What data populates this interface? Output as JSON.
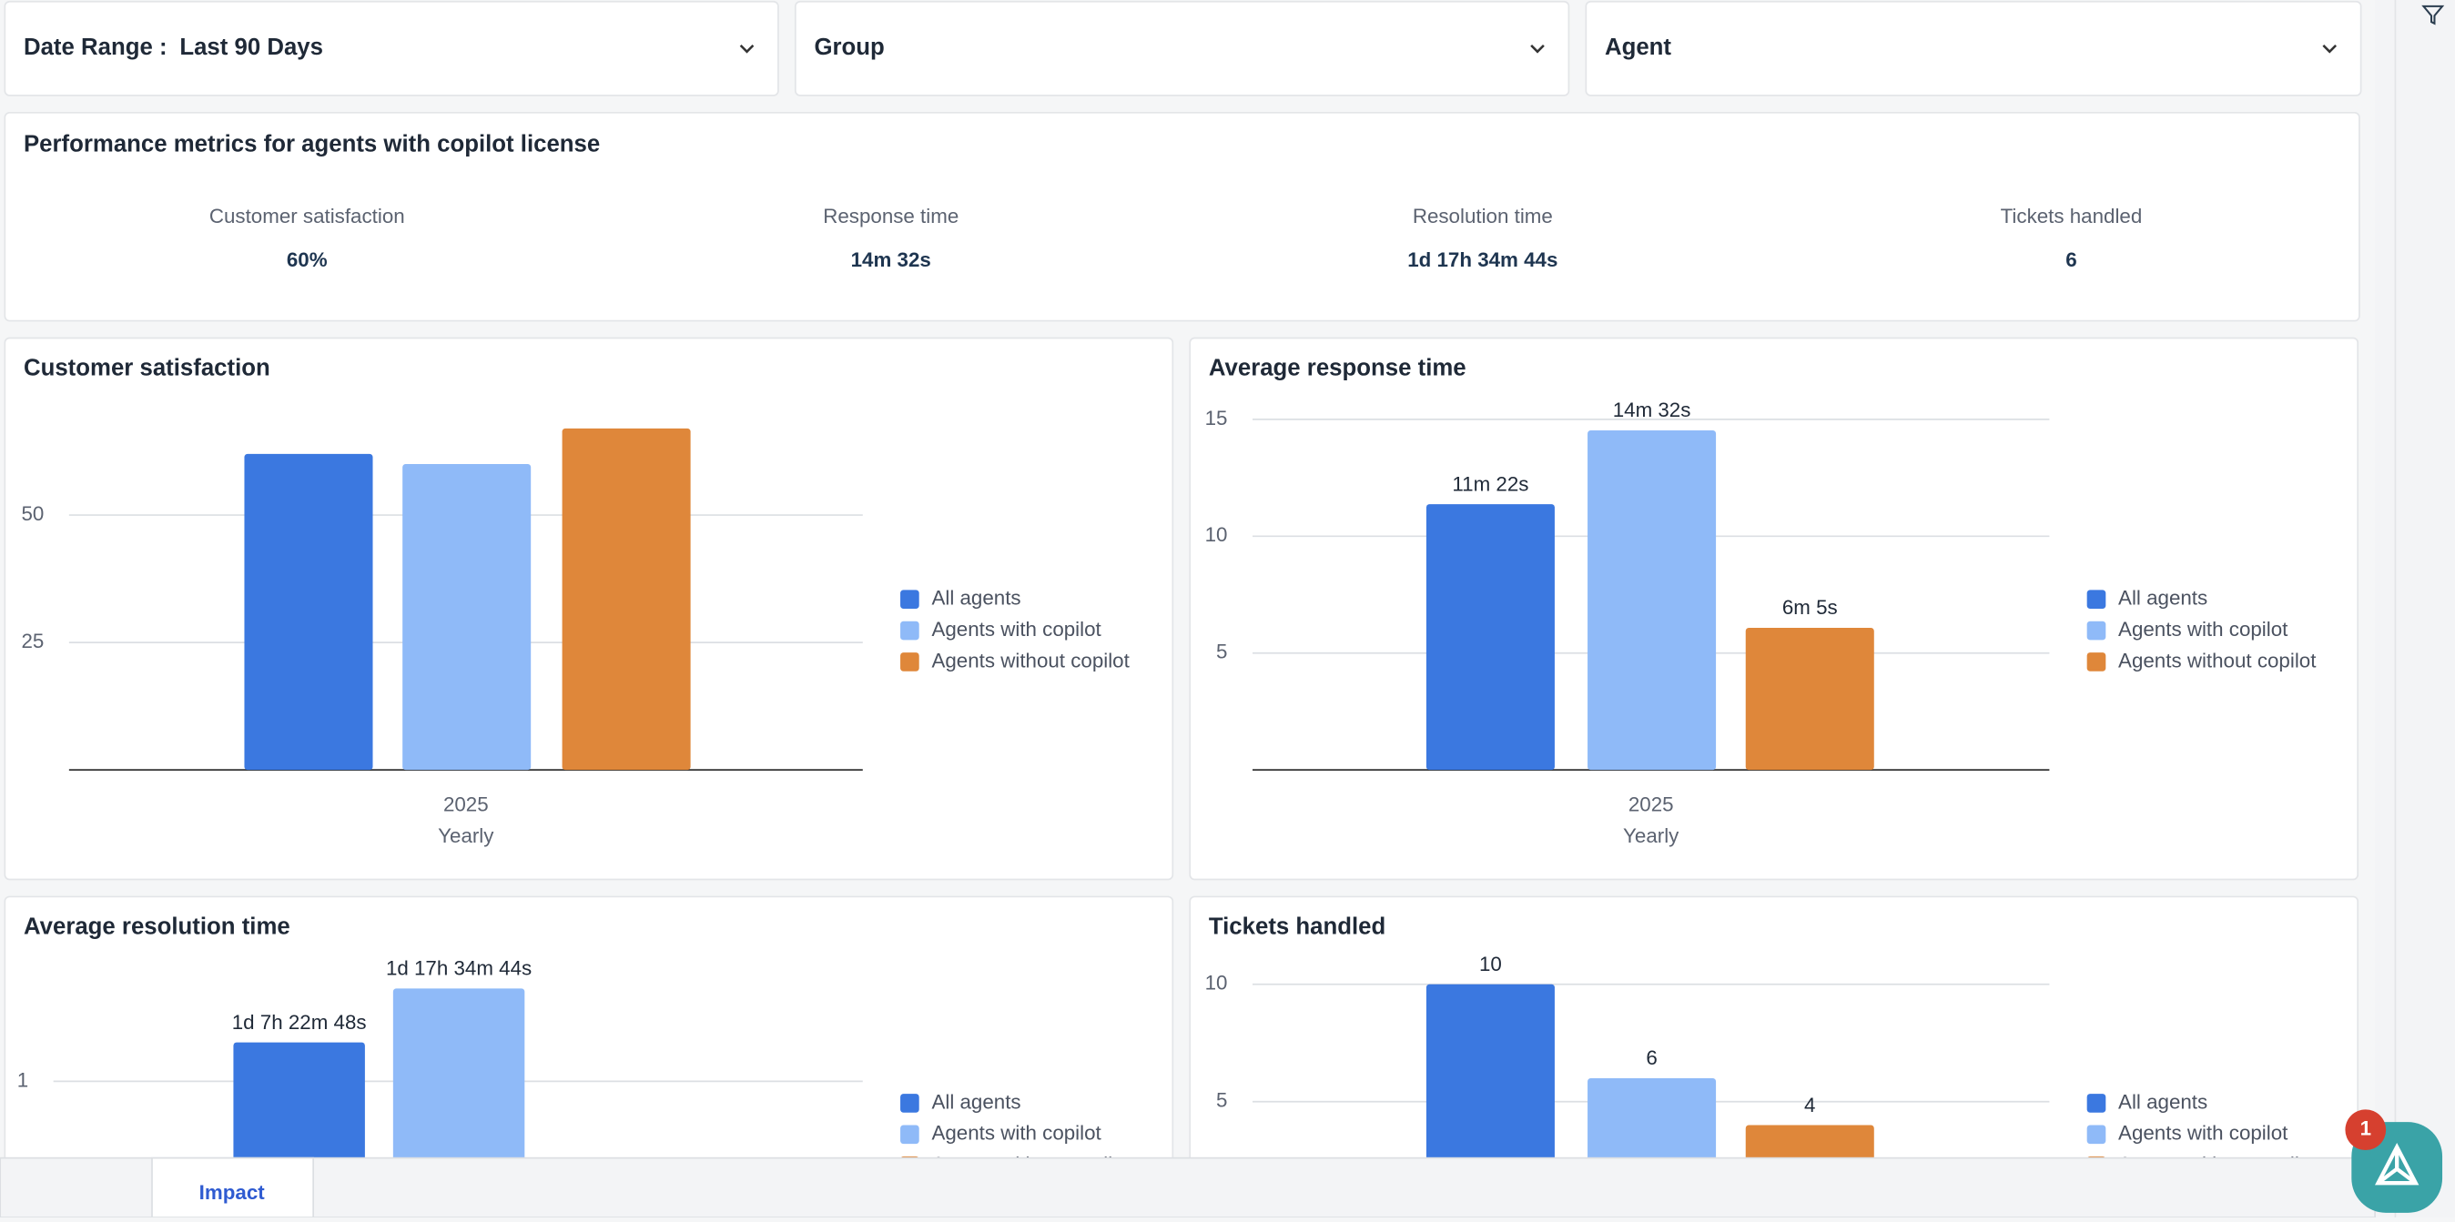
{
  "filters": [
    {
      "label": "Date Range :",
      "value": "Last 90 Days"
    },
    {
      "label": "Group"
    },
    {
      "label": "Agent"
    }
  ],
  "metrics": {
    "title": "Performance metrics for agents with copilot license",
    "items": [
      {
        "label": "Customer satisfaction",
        "value": "60%"
      },
      {
        "label": "Response time",
        "value": "14m 32s"
      },
      {
        "label": "Resolution time",
        "value": "1d 17h 34m 44s"
      },
      {
        "label": "Tickets handled",
        "value": "6"
      }
    ]
  },
  "charts": [
    {
      "type": "bar",
      "title": "Customer satisfaction",
      "categories": [
        "2025"
      ],
      "xlabel": "Yearly",
      "ylim": [
        0,
        70
      ],
      "yticks": [
        25,
        50
      ],
      "series": [
        {
          "name": "All agents",
          "color": "#3b78e0",
          "values": [
            62
          ]
        },
        {
          "name": "Agents with copilot",
          "color": "#8fbaf8",
          "values": [
            60
          ]
        },
        {
          "name": "Agents without copilot",
          "color": "#df873a",
          "values": [
            67
          ]
        }
      ]
    },
    {
      "type": "bar",
      "title": "Average response time",
      "categories": [
        "2025"
      ],
      "xlabel": "Yearly",
      "ylim": [
        0,
        15
      ],
      "yticks": [
        5,
        10,
        15
      ],
      "series": [
        {
          "name": "All agents",
          "color": "#3b78e0",
          "values": [
            11.37
          ],
          "value_labels": [
            "11m 22s"
          ]
        },
        {
          "name": "Agents with copilot",
          "color": "#8fbaf8",
          "values": [
            14.53
          ],
          "value_labels": [
            "14m 32s"
          ]
        },
        {
          "name": "Agents without copilot",
          "color": "#df873a",
          "values": [
            6.08
          ],
          "value_labels": [
            "6m 5s"
          ]
        }
      ]
    },
    {
      "type": "bar",
      "title": "Average resolution time",
      "categories": [
        null
      ],
      "ylim": [
        0,
        2
      ],
      "yticks": [
        1
      ],
      "series": [
        {
          "name": "All agents",
          "color": "#3b78e0",
          "values": [
            1.307
          ],
          "value_labels": [
            "1d 7h 22m 48s"
          ]
        },
        {
          "name": "Agents with copilot",
          "color": "#8fbaf8",
          "values": [
            1.732
          ],
          "value_labels": [
            "1d 17h 34m 44s"
          ]
        },
        {
          "name": "Agents without copilot",
          "color": "#df873a",
          "values": [
            null
          ]
        }
      ]
    },
    {
      "type": "bar",
      "title": "Tickets handled",
      "categories": [
        null
      ],
      "ylim": [
        0,
        10
      ],
      "yticks": [
        5,
        10
      ],
      "series": [
        {
          "name": "All agents",
          "color": "#3b78e0",
          "values": [
            10
          ],
          "value_labels": [
            "10"
          ]
        },
        {
          "name": "Agents with copilot",
          "color": "#8fbaf8",
          "values": [
            6
          ],
          "value_labels": [
            "6"
          ]
        },
        {
          "name": "Agents without copilot",
          "color": "#df873a",
          "values": [
            4
          ],
          "value_labels": [
            "4"
          ]
        }
      ]
    }
  ],
  "tabs": [
    "Impact"
  ],
  "badge": "1"
}
